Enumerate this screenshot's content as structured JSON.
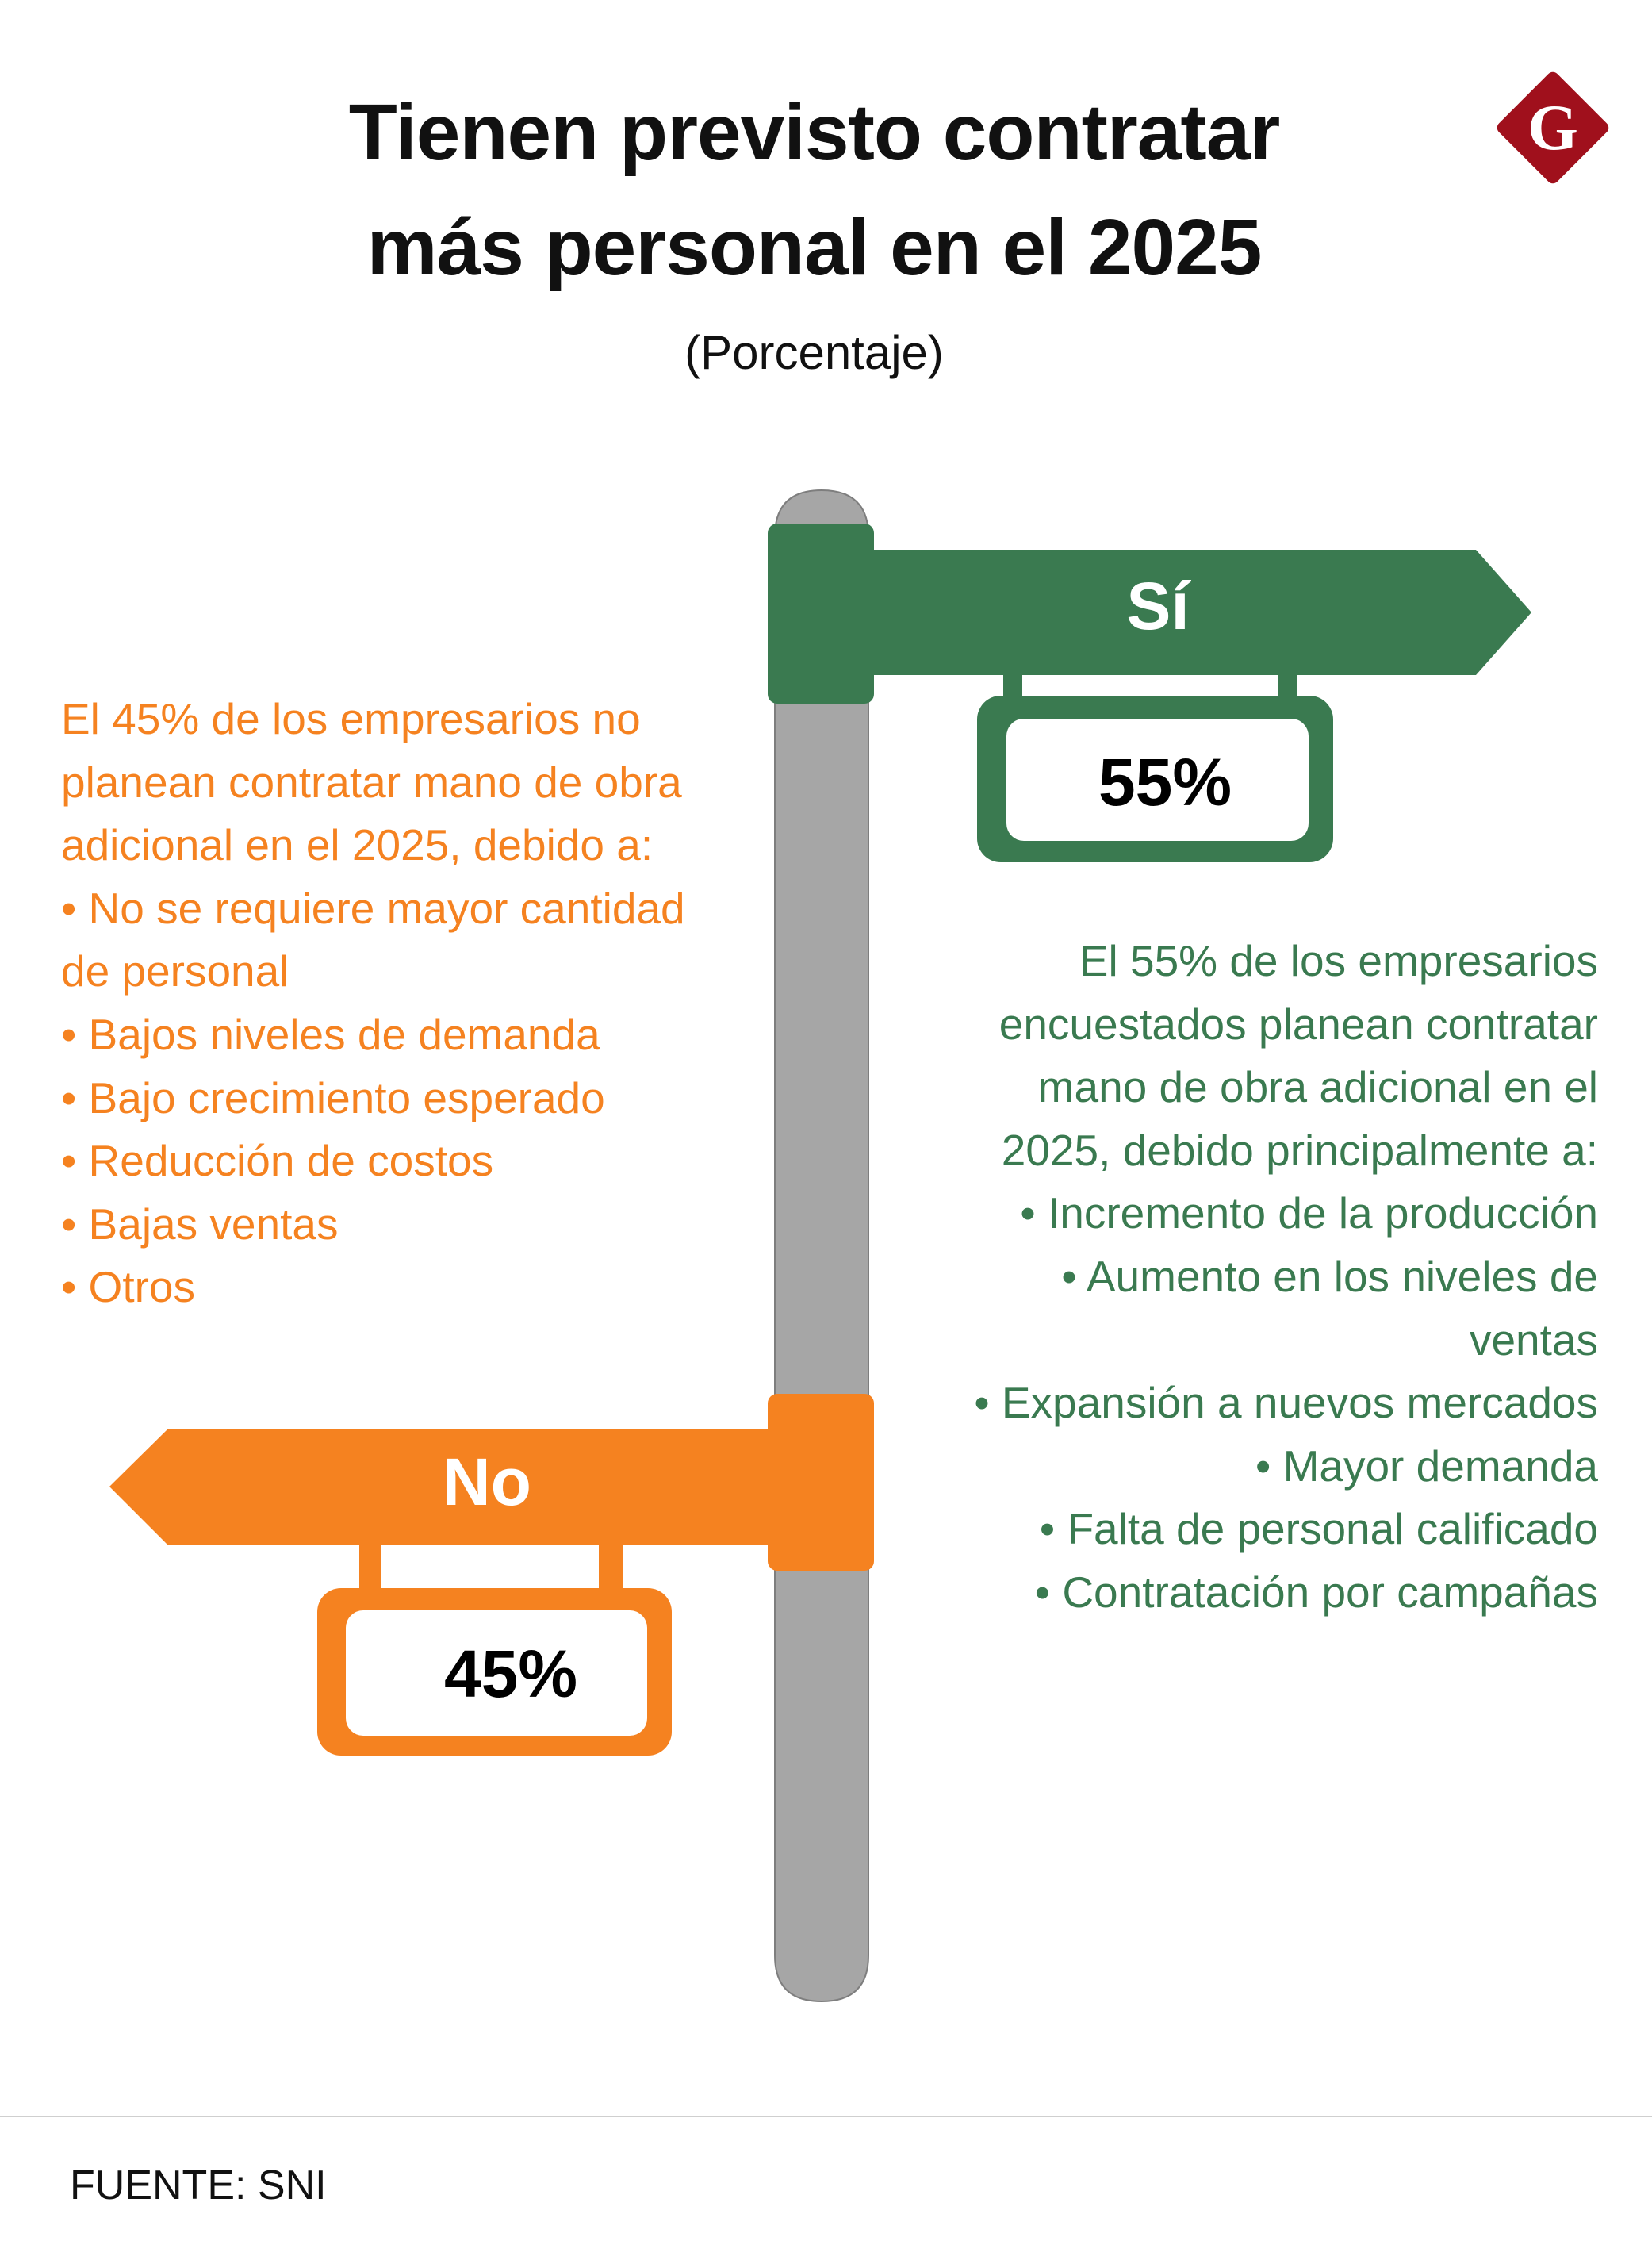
{
  "title": {
    "line1": "Tienen previsto contratar",
    "line2": "más personal en el 2025"
  },
  "subtitle": "(Porcentaje)",
  "logo": {
    "letter": "G",
    "color": "#a0101c"
  },
  "colors": {
    "yes": "#3a7a50",
    "no": "#f58220",
    "pole": "#a6a6a6"
  },
  "yes_sign": {
    "label": "Sí",
    "value": "55%",
    "percent": 55
  },
  "no_sign": {
    "label": "No",
    "value": "45%",
    "percent": 45
  },
  "no_text": {
    "intro": "El 45% de los empresarios no planean contratar mano de obra adicional en el 2025, debido a:",
    "items": [
      "No se requiere mayor cantidad de personal",
      "Bajos niveles de demanda",
      "Bajo crecimiento esperado",
      "Reducción de costos",
      "Bajas ventas",
      "Otros"
    ]
  },
  "yes_text": {
    "intro": "El 55% de los empresarios encuestados planean contratar mano de obra adicional en el 2025, debido principalmente a:",
    "items": [
      "Incremento de la producción",
      "Aumento en los niveles de ventas",
      "Expansión a nuevos mercados",
      "Mayor demanda",
      "Falta de personal calificado",
      "Contratación por campañas"
    ]
  },
  "source": "FUENTE: SNI"
}
